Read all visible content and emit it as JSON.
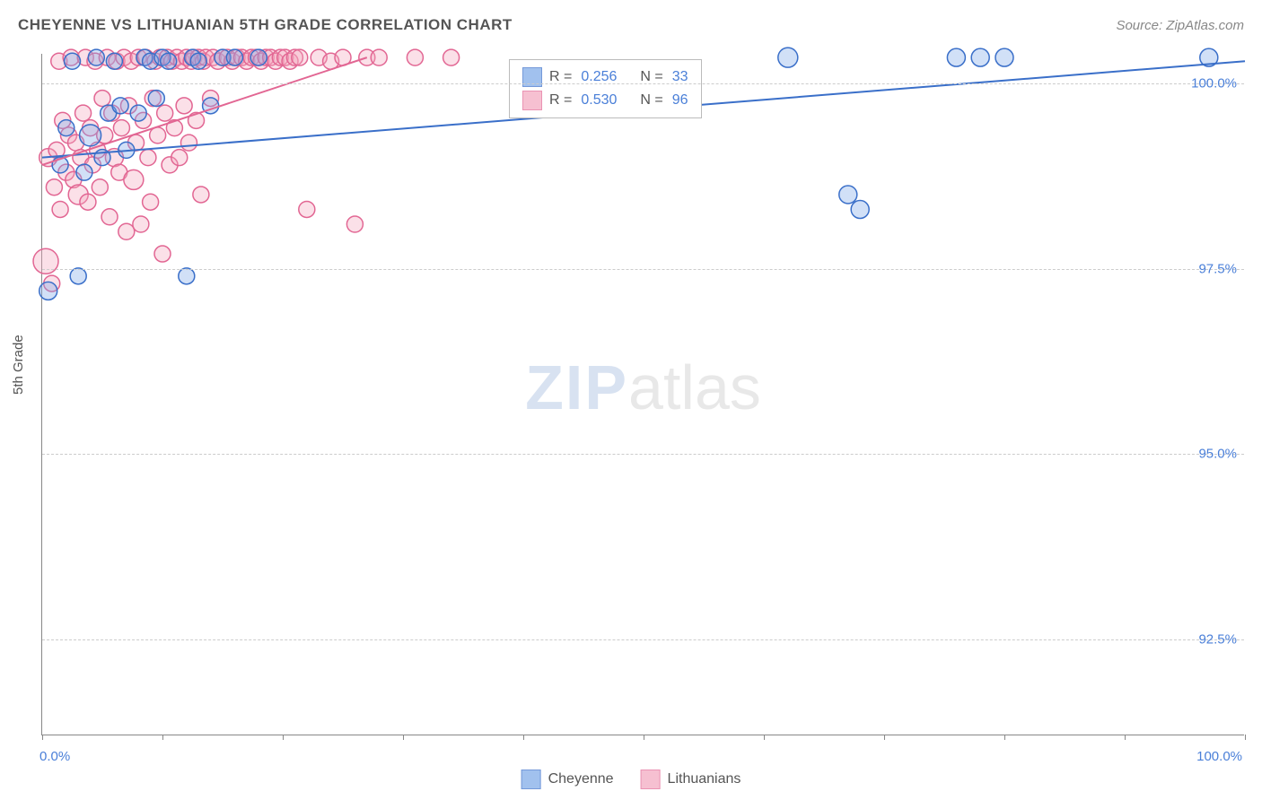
{
  "title": "CHEYENNE VS LITHUANIAN 5TH GRADE CORRELATION CHART",
  "source": "Source: ZipAtlas.com",
  "ylabel": "5th Grade",
  "watermark": {
    "zip": "ZIP",
    "atlas": "atlas"
  },
  "chart": {
    "type": "scatter",
    "xlim": [
      0,
      100
    ],
    "ylim": [
      91.2,
      100.4
    ],
    "x_unit": "%",
    "y_unit": "%",
    "background_color": "#ffffff",
    "grid_color": "#cccccc",
    "grid_dash": "4,4",
    "axis_color": "#888888",
    "tick_label_color": "#4a7fd8",
    "y_gridlines": [
      92.5,
      95.0,
      97.5,
      100.0
    ],
    "ytick_labels": [
      "92.5%",
      "95.0%",
      "97.5%",
      "100.0%"
    ],
    "x_ticks": [
      0,
      10,
      20,
      30,
      40,
      50,
      60,
      70,
      80,
      90,
      100
    ],
    "xtick_labels": {
      "0": "0.0%",
      "100": "100.0%"
    },
    "marker_radius": 9,
    "marker_fill_opacity": 0.35,
    "marker_stroke_width": 1.5,
    "line_width": 2
  },
  "series": [
    {
      "name": "Cheyenne",
      "color_fill": "#7aa7e8",
      "color_stroke": "#3a6fc9",
      "R": "0.256",
      "N": "33",
      "trend": {
        "x1": 0,
        "y1": 99.0,
        "x2": 100,
        "y2": 100.3
      },
      "points": [
        [
          0.5,
          97.2,
          10
        ],
        [
          1.5,
          98.9,
          9
        ],
        [
          2,
          99.4,
          9
        ],
        [
          2.5,
          100.3,
          9
        ],
        [
          3,
          97.4,
          9
        ],
        [
          3.5,
          98.8,
          9
        ],
        [
          4,
          99.3,
          12
        ],
        [
          4.5,
          100.35,
          9
        ],
        [
          5,
          99.0,
          9
        ],
        [
          5.5,
          99.6,
          9
        ],
        [
          6,
          100.3,
          9
        ],
        [
          6.5,
          99.7,
          9
        ],
        [
          7,
          99.1,
          9
        ],
        [
          8,
          99.6,
          9
        ],
        [
          8.5,
          100.35,
          9
        ],
        [
          9,
          100.3,
          9
        ],
        [
          9.5,
          99.8,
          9
        ],
        [
          10,
          100.35,
          9
        ],
        [
          10.5,
          100.3,
          9
        ],
        [
          12,
          97.4,
          9
        ],
        [
          12.5,
          100.35,
          9
        ],
        [
          13,
          100.3,
          9
        ],
        [
          14,
          99.7,
          9
        ],
        [
          15,
          100.35,
          9
        ],
        [
          16,
          100.35,
          9
        ],
        [
          18,
          100.35,
          9
        ],
        [
          62,
          100.35,
          11
        ],
        [
          67,
          98.5,
          10
        ],
        [
          68,
          98.3,
          10
        ],
        [
          76,
          100.35,
          10
        ],
        [
          78,
          100.35,
          10
        ],
        [
          80,
          100.35,
          10
        ],
        [
          97,
          100.35,
          10
        ]
      ]
    },
    {
      "name": "Lithuanians",
      "color_fill": "#f3a6be",
      "color_stroke": "#e26693",
      "R": "0.530",
      "N": "96",
      "trend": {
        "x1": 0,
        "y1": 98.9,
        "x2": 27,
        "y2": 100.35
      },
      "points": [
        [
          0.3,
          97.6,
          14
        ],
        [
          0.5,
          99.0,
          10
        ],
        [
          0.8,
          97.3,
          9
        ],
        [
          1,
          98.6,
          9
        ],
        [
          1.2,
          99.1,
          9
        ],
        [
          1.4,
          100.3,
          9
        ],
        [
          1.5,
          98.3,
          9
        ],
        [
          1.7,
          99.5,
          9
        ],
        [
          2,
          98.8,
          9
        ],
        [
          2.2,
          99.3,
          9
        ],
        [
          2.4,
          100.35,
          9
        ],
        [
          2.6,
          98.7,
          9
        ],
        [
          2.8,
          99.2,
          9
        ],
        [
          3,
          98.5,
          11
        ],
        [
          3.2,
          99.0,
          9
        ],
        [
          3.4,
          99.6,
          9
        ],
        [
          3.6,
          100.35,
          9
        ],
        [
          3.8,
          98.4,
          9
        ],
        [
          4,
          99.4,
          9
        ],
        [
          4.2,
          98.9,
          9
        ],
        [
          4.4,
          100.3,
          9
        ],
        [
          4.6,
          99.1,
          9
        ],
        [
          4.8,
          98.6,
          9
        ],
        [
          5,
          99.8,
          9
        ],
        [
          5.2,
          99.3,
          9
        ],
        [
          5.4,
          100.35,
          9
        ],
        [
          5.6,
          98.2,
          9
        ],
        [
          5.8,
          99.6,
          9
        ],
        [
          6,
          99.0,
          10
        ],
        [
          6.2,
          100.3,
          9
        ],
        [
          6.4,
          98.8,
          9
        ],
        [
          6.6,
          99.4,
          9
        ],
        [
          6.8,
          100.35,
          9
        ],
        [
          7,
          98.0,
          9
        ],
        [
          7.2,
          99.7,
          9
        ],
        [
          7.4,
          100.3,
          9
        ],
        [
          7.6,
          98.7,
          11
        ],
        [
          7.8,
          99.2,
          9
        ],
        [
          8,
          100.35,
          9
        ],
        [
          8.2,
          98.1,
          9
        ],
        [
          8.4,
          99.5,
          9
        ],
        [
          8.6,
          100.35,
          9
        ],
        [
          8.8,
          99.0,
          9
        ],
        [
          9,
          98.4,
          9
        ],
        [
          9.2,
          99.8,
          9
        ],
        [
          9.4,
          100.3,
          9
        ],
        [
          9.6,
          99.3,
          9
        ],
        [
          9.8,
          100.35,
          9
        ],
        [
          10,
          97.7,
          9
        ],
        [
          10.2,
          99.6,
          9
        ],
        [
          10.4,
          100.35,
          9
        ],
        [
          10.6,
          98.9,
          9
        ],
        [
          10.8,
          100.3,
          9
        ],
        [
          11,
          99.4,
          9
        ],
        [
          11.2,
          100.35,
          9
        ],
        [
          11.4,
          99.0,
          9
        ],
        [
          11.6,
          100.3,
          9
        ],
        [
          11.8,
          99.7,
          9
        ],
        [
          12,
          100.35,
          9
        ],
        [
          12.2,
          99.2,
          9
        ],
        [
          12.4,
          100.3,
          9
        ],
        [
          12.6,
          100.35,
          9
        ],
        [
          12.8,
          99.5,
          9
        ],
        [
          13,
          100.35,
          9
        ],
        [
          13.2,
          98.5,
          9
        ],
        [
          13.4,
          100.3,
          9
        ],
        [
          13.6,
          100.35,
          9
        ],
        [
          14,
          99.8,
          9
        ],
        [
          14.2,
          100.35,
          9
        ],
        [
          14.6,
          100.3,
          9
        ],
        [
          15,
          100.35,
          9
        ],
        [
          15.4,
          100.35,
          9
        ],
        [
          15.8,
          100.3,
          9
        ],
        [
          16.2,
          100.35,
          9
        ],
        [
          16.6,
          100.35,
          9
        ],
        [
          17,
          100.3,
          9
        ],
        [
          17.4,
          100.35,
          9
        ],
        [
          17.8,
          100.35,
          9
        ],
        [
          18.2,
          100.3,
          9
        ],
        [
          18.6,
          100.35,
          9
        ],
        [
          19,
          100.35,
          9
        ],
        [
          19.4,
          100.3,
          9
        ],
        [
          19.8,
          100.35,
          9
        ],
        [
          20.2,
          100.35,
          9
        ],
        [
          20.6,
          100.3,
          9
        ],
        [
          21,
          100.35,
          9
        ],
        [
          21.4,
          100.35,
          9
        ],
        [
          22,
          98.3,
          9
        ],
        [
          23,
          100.35,
          9
        ],
        [
          24,
          100.3,
          9
        ],
        [
          25,
          100.35,
          9
        ],
        [
          26,
          98.1,
          9
        ],
        [
          27,
          100.35,
          9
        ],
        [
          28,
          100.35,
          9
        ],
        [
          31,
          100.35,
          9
        ],
        [
          34,
          100.35,
          9
        ]
      ]
    }
  ],
  "legend_box": {
    "rows": [
      {
        "series_idx": 0
      },
      {
        "series_idx": 1
      }
    ]
  },
  "bottom_legend": [
    {
      "series_idx": 0
    },
    {
      "series_idx": 1
    }
  ]
}
